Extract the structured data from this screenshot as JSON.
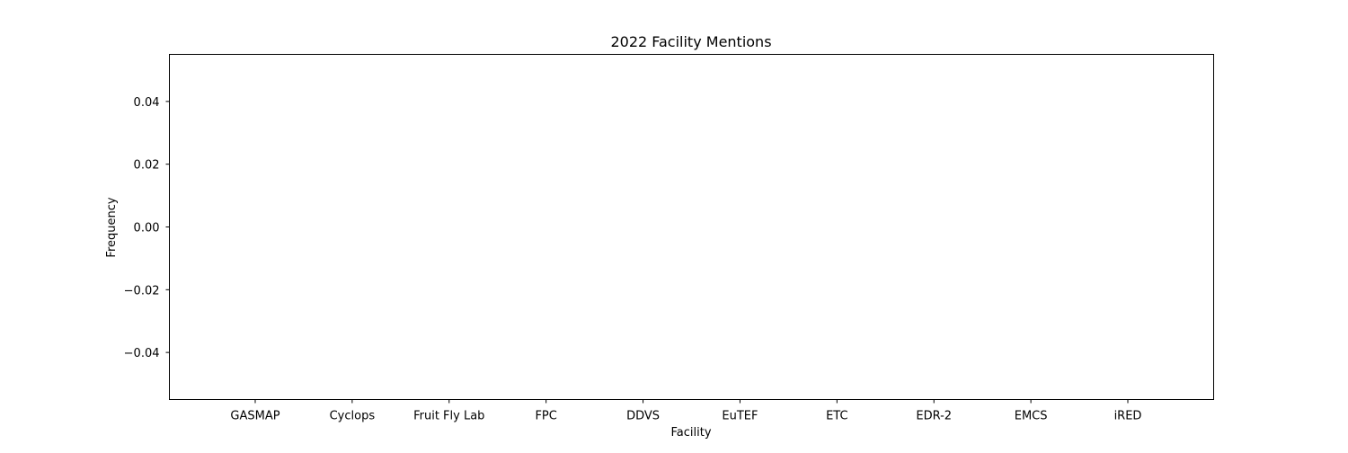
{
  "chart_data": {
    "type": "bar",
    "title": "2022 Facility Mentions",
    "xlabel": "Facility",
    "ylabel": "Frequency",
    "categories": [
      "GASMAP",
      "Cyclops",
      "Fruit Fly Lab",
      "FPC",
      "DDVS",
      "EuTEF",
      "ETC",
      "EDR-2",
      "EMCS",
      "iRED"
    ],
    "values": [
      0,
      0,
      0,
      0,
      0,
      0,
      0,
      0,
      0,
      0
    ],
    "ylim": [
      -0.055,
      0.055
    ],
    "yticks": [
      0.04,
      0.02,
      0.0,
      -0.02,
      -0.04
    ],
    "ytick_labels": [
      "0.04",
      "0.02",
      "0.00",
      "−0.02",
      "−0.04"
    ],
    "grid": false,
    "legend": "none",
    "colors": {
      "axis": "#000000",
      "background": "#ffffff",
      "bar": "#1f77b4"
    }
  }
}
